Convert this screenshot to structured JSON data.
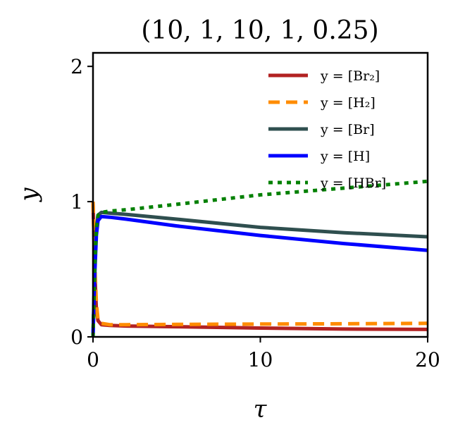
{
  "chart_data": {
    "type": "line",
    "title": "(10, 1, 10, 1, 0.25)",
    "xlabel": "τ",
    "ylabel": "y",
    "xlim": [
      0,
      20
    ],
    "ylim": [
      0,
      2.1
    ],
    "xticks": [
      0,
      10,
      20
    ],
    "yticks": [
      0,
      1,
      2
    ],
    "grid": false,
    "legend_position": "top-right",
    "x": [
      0,
      0.1,
      0.2,
      0.3,
      0.5,
      1,
      2,
      5,
      10,
      15,
      20
    ],
    "series": [
      {
        "name": "y = [Br₂]",
        "color": "#b22222",
        "dash": "solid",
        "values": [
          1,
          0.5,
          0.2,
          0.12,
          0.09,
          0.085,
          0.08,
          0.075,
          0.065,
          0.058,
          0.055
        ]
      },
      {
        "name": "y = [H₂]",
        "color": "#ff8c00",
        "dash": "dashed",
        "values": [
          1,
          0.55,
          0.25,
          0.13,
          0.1,
          0.09,
          0.09,
          0.092,
          0.095,
          0.097,
          0.1
        ]
      },
      {
        "name": "y = [Br]",
        "color": "#2f4f4f",
        "dash": "solid",
        "values": [
          0,
          0.5,
          0.8,
          0.9,
          0.92,
          0.915,
          0.905,
          0.87,
          0.81,
          0.77,
          0.74
        ]
      },
      {
        "name": "y = [H]",
        "color": "#0000ff",
        "dash": "solid",
        "values": [
          0,
          0.45,
          0.75,
          0.86,
          0.89,
          0.885,
          0.87,
          0.82,
          0.75,
          0.69,
          0.64
        ]
      },
      {
        "name": "y = [HBr]",
        "color": "#008000",
        "dash": "dotted",
        "values": [
          0,
          0.5,
          0.8,
          0.9,
          0.92,
          0.93,
          0.94,
          0.98,
          1.05,
          1.1,
          1.15
        ]
      }
    ]
  }
}
